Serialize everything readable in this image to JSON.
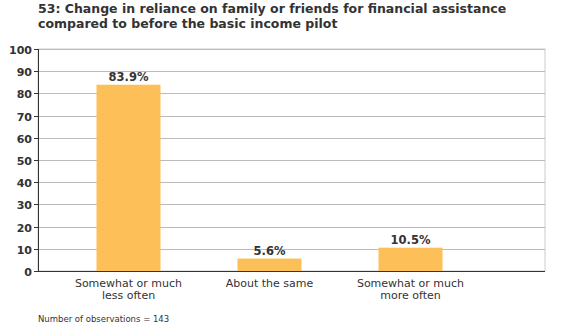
{
  "chart_data": {
    "type": "bar",
    "title": "53: Change in reliance on family or friends for financial assistance compared to before the basic income pilot",
    "categories": [
      "Somewhat or much less often",
      "About the same",
      "Somewhat or much more often"
    ],
    "values": [
      83.9,
      5.6,
      10.5
    ],
    "value_labels": [
      "83.9%",
      "5.6%",
      "10.5%"
    ],
    "color": "#fdbf57",
    "ylim": [
      0,
      100
    ],
    "yticks": [
      0,
      10,
      20,
      30,
      40,
      50,
      60,
      70,
      80,
      90,
      100
    ],
    "grid": true,
    "data_labels": true,
    "annotations": [
      "Number of observations = 143"
    ]
  }
}
